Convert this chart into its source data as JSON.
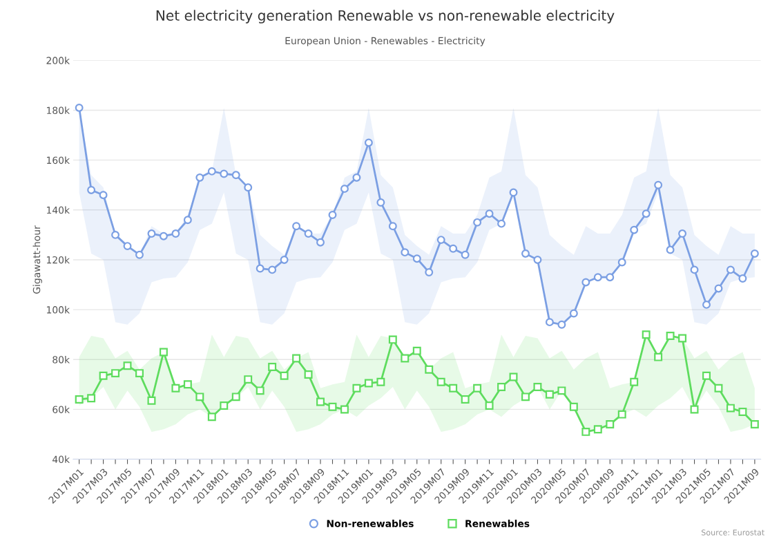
{
  "chart_data": {
    "type": "line",
    "title": "Net electricity generation Renewable vs non-renewable electricity",
    "subtitle": "European Union - Renewables - Electricity",
    "ylabel": "Gigawatt-hour",
    "categories": [
      "2017M01",
      null,
      "2017M03",
      null,
      "2017M05",
      null,
      "2017M07",
      null,
      "2017M09",
      null,
      "2017M11",
      null,
      "2018M01",
      null,
      "2018M03",
      null,
      "2018M05",
      null,
      "2018M07",
      null,
      "2018M09",
      null,
      "2018M11",
      null,
      "2019M01",
      null,
      "2019M03",
      null,
      "2019M05",
      null,
      "2019M07",
      null,
      "2019M09",
      null,
      "2019M11",
      null,
      "2020M01",
      null,
      "2020M03",
      null,
      "2020M05",
      null,
      "2020M07",
      null,
      "2020M09",
      null,
      "2020M11",
      null,
      "2021M01",
      null,
      "2021M03",
      null,
      "2021M05",
      null,
      "2021M07",
      null,
      "2021M09"
    ],
    "series": [
      {
        "name": "Non-renewables",
        "color": "#7b9fe3",
        "marker": "circle",
        "values": [
          181000,
          148000,
          146000,
          130000,
          125500,
          122000,
          130500,
          129500,
          130500,
          136000,
          153000,
          155500,
          154500,
          154000,
          149000,
          116500,
          116000,
          120000,
          133500,
          130500,
          127000,
          138000,
          148500,
          153000,
          167000,
          143000,
          133500,
          123000,
          120500,
          115000,
          128000,
          124500,
          122000,
          135000,
          138500,
          134500,
          147000,
          122500,
          120000,
          95000,
          94000,
          98500,
          111000,
          113000,
          113000,
          119000,
          132000,
          138500,
          150000,
          124000,
          130500,
          116000,
          102000,
          108500,
          116000,
          112500,
          122500
        ],
        "upper": [
          181000,
          154000,
          149000,
          130000,
          125500,
          122000,
          133500,
          130500,
          130500,
          138000,
          153000,
          155500,
          181000,
          154000,
          149000,
          130000,
          125500,
          122000,
          133500,
          130500,
          130500,
          138000,
          153000,
          155500,
          181000,
          154000,
          149000,
          130000,
          125500,
          122000,
          133500,
          130500,
          130500,
          138000,
          153000,
          155500,
          181000,
          154000,
          149000,
          130000,
          125500,
          122000,
          133500,
          130500,
          130500,
          138000,
          153000,
          155500,
          181000,
          154000,
          149000,
          130000,
          125500,
          122000,
          133500,
          130500,
          130500
        ],
        "lower": [
          147000,
          122500,
          120000,
          95000,
          94000,
          98500,
          111000,
          112500,
          113000,
          119000,
          132000,
          134500,
          147000,
          122500,
          120000,
          95000,
          94000,
          98500,
          111000,
          112500,
          113000,
          119000,
          132000,
          134500,
          147000,
          122500,
          120000,
          95000,
          94000,
          98500,
          111000,
          112500,
          113000,
          119000,
          132000,
          134500,
          147000,
          122500,
          120000,
          95000,
          94000,
          98500,
          111000,
          112500,
          113000,
          119000,
          132000,
          134500,
          147000,
          122500,
          120000,
          95000,
          94000,
          98500,
          111000,
          112500,
          113000
        ]
      },
      {
        "name": "Renewables",
        "color": "#5edc5e",
        "marker": "square",
        "values": [
          64000,
          64500,
          73500,
          74500,
          77500,
          74500,
          63500,
          83000,
          68500,
          70000,
          65000,
          57000,
          61500,
          65000,
          72000,
          67500,
          77000,
          73500,
          80500,
          74000,
          63000,
          61000,
          60000,
          68500,
          70500,
          71000,
          88000,
          80500,
          83500,
          76000,
          71000,
          68500,
          64000,
          68500,
          61500,
          69000,
          73000,
          65000,
          69000,
          66000,
          67500,
          61000,
          51000,
          52000,
          54000,
          58000,
          71000,
          90000,
          81000,
          89500,
          88500,
          60000,
          73500,
          68500,
          60500,
          59000,
          54000
        ],
        "upper": [
          81000,
          89500,
          88500,
          80500,
          83500,
          76000,
          80500,
          83000,
          68500,
          70000,
          71000,
          90000,
          81000,
          89500,
          88500,
          80500,
          83500,
          76000,
          80500,
          83000,
          68500,
          70000,
          71000,
          90000,
          81000,
          89500,
          88500,
          80500,
          83500,
          76000,
          80500,
          83000,
          68500,
          70000,
          71000,
          90000,
          81000,
          89500,
          88500,
          80500,
          83500,
          76000,
          80500,
          83000,
          68500,
          70000,
          71000,
          90000,
          81000,
          89500,
          88500,
          80500,
          83500,
          76000,
          80500,
          83000,
          68500
        ],
        "lower": [
          61500,
          64500,
          69000,
          60000,
          67500,
          61000,
          51000,
          52000,
          54000,
          58000,
          60000,
          57000,
          61500,
          64500,
          69000,
          60000,
          67500,
          61000,
          51000,
          52000,
          54000,
          58000,
          60000,
          57000,
          61500,
          64500,
          69000,
          60000,
          67500,
          61000,
          51000,
          52000,
          54000,
          58000,
          60000,
          57000,
          61500,
          64500,
          69000,
          60000,
          67500,
          61000,
          51000,
          52000,
          54000,
          58000,
          60000,
          57000,
          61500,
          64500,
          69000,
          60000,
          67500,
          61000,
          51000,
          52000,
          54000
        ]
      }
    ],
    "ylim": [
      40000,
      200000
    ],
    "yticks": [
      {
        "value": 40000,
        "label": "40k"
      },
      {
        "value": 60000,
        "label": "60k"
      },
      {
        "value": 80000,
        "label": "80k"
      },
      {
        "value": 100000,
        "label": "100k"
      },
      {
        "value": 120000,
        "label": "120k"
      },
      {
        "value": 140000,
        "label": "140k"
      },
      {
        "value": 160000,
        "label": "160k"
      },
      {
        "value": 180000,
        "label": "180k"
      },
      {
        "value": 200000,
        "label": "200k"
      }
    ],
    "grid": "y",
    "legend": "bottom",
    "line_style": "solid",
    "annotations": [
      "Source: Eurostat"
    ]
  }
}
